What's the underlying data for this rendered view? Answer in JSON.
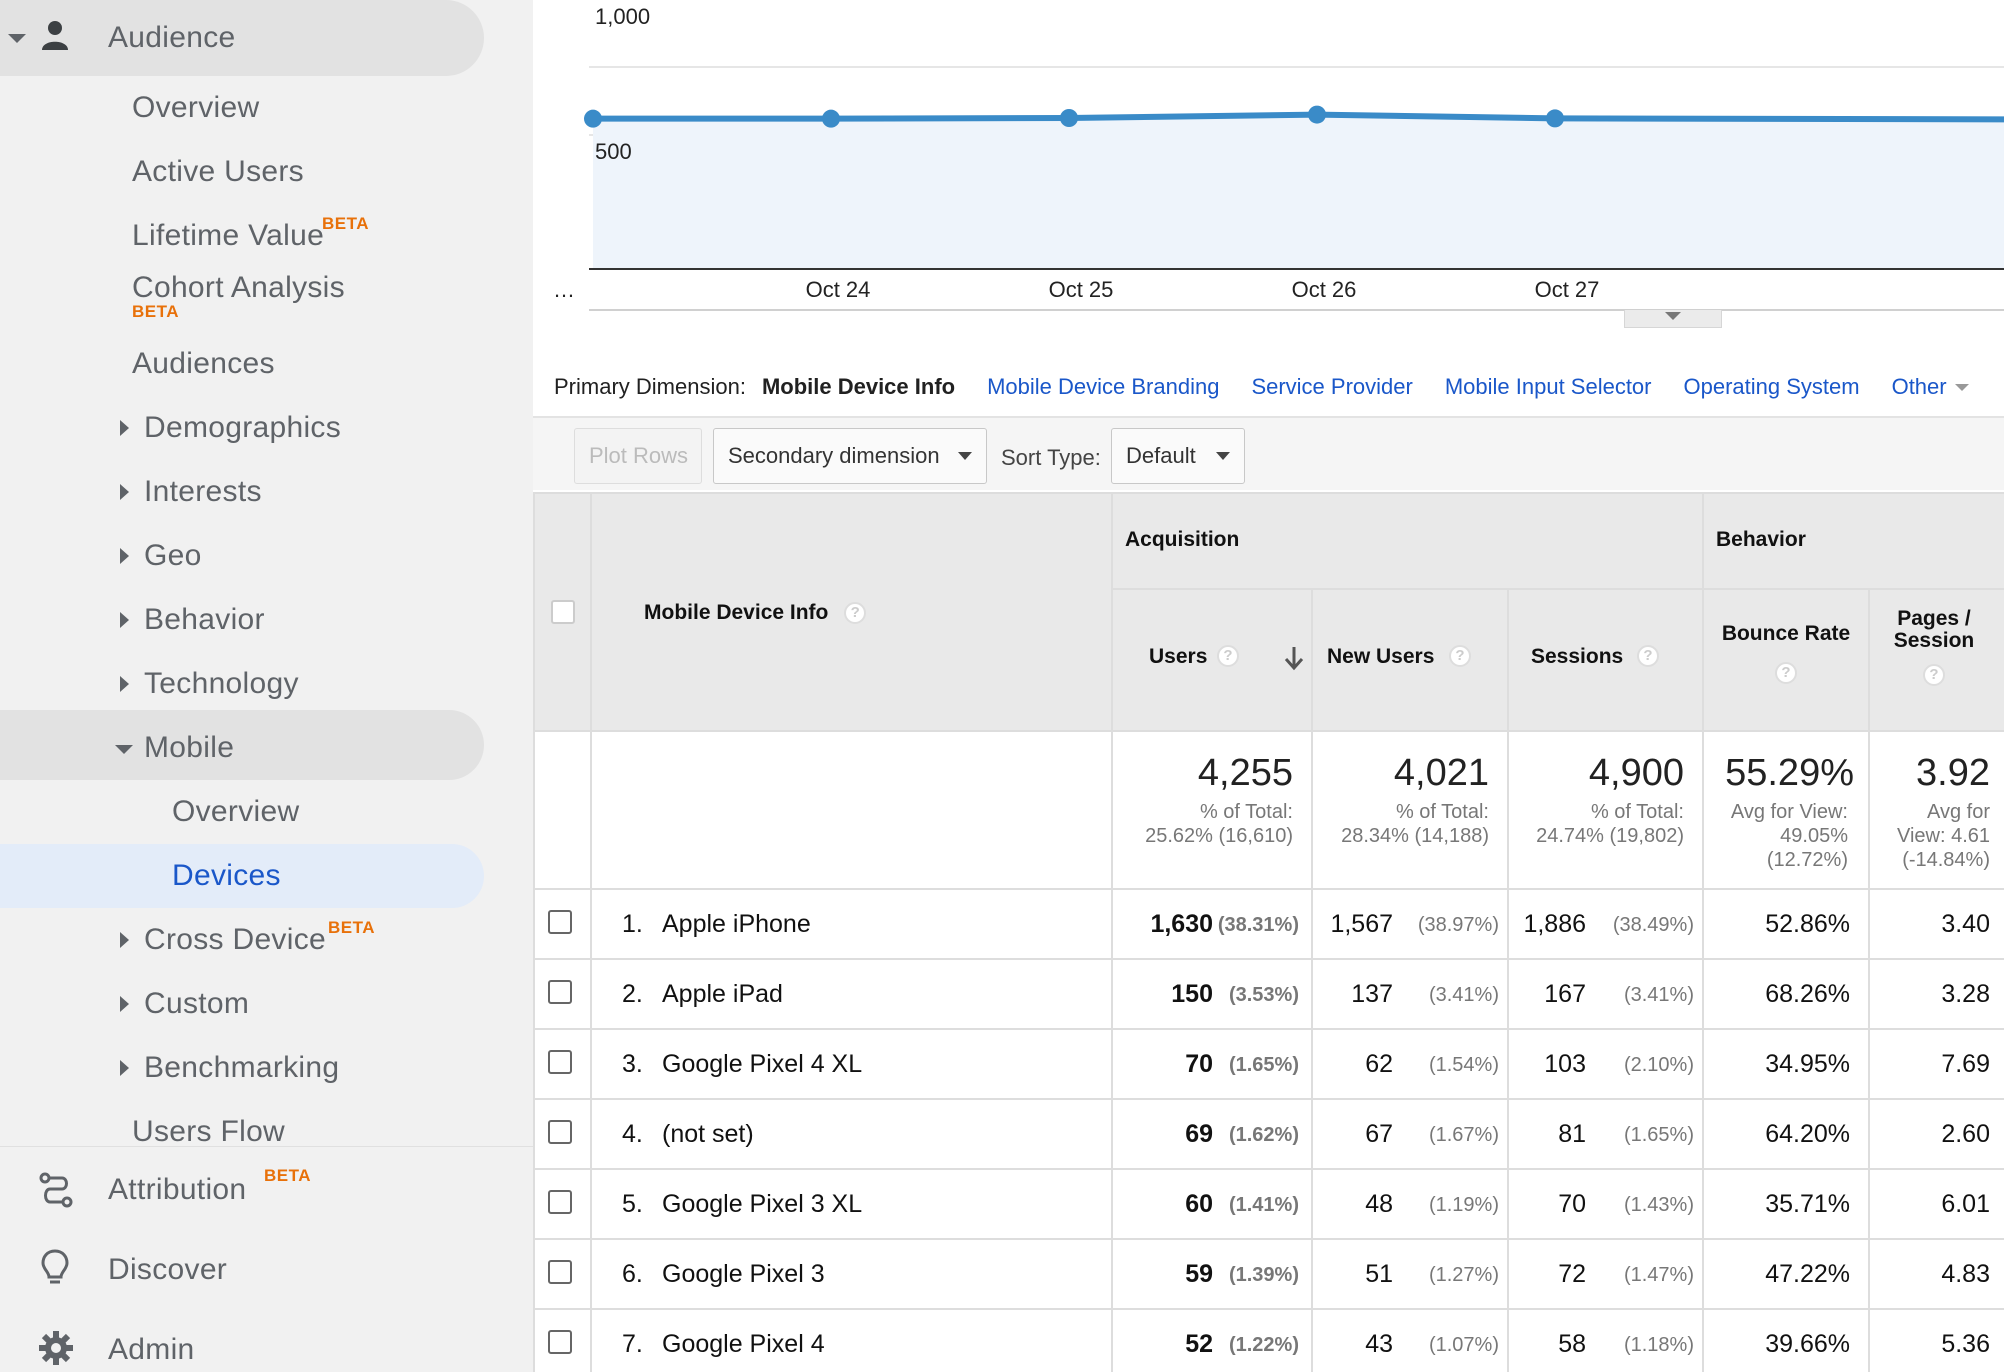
{
  "sidebar": {
    "audience": "Audience",
    "items": {
      "overview": "Overview",
      "active_users": "Active Users",
      "lifetime_value": "Lifetime Value",
      "cohort_analysis": "Cohort Analysis",
      "audiences": "Audiences",
      "demographics": "Demographics",
      "interests": "Interests",
      "geo": "Geo",
      "behavior": "Behavior",
      "technology": "Technology",
      "mobile": "Mobile",
      "mobile_overview": "Overview",
      "devices": "Devices",
      "cross_device": "Cross Device",
      "custom": "Custom",
      "benchmarking": "Benchmarking",
      "users_flow": "Users Flow"
    },
    "beta": "BETA",
    "attribution": "Attribution",
    "discover": "Discover",
    "admin": "Admin",
    "icons": {
      "audience": "person-icon",
      "attribution": "route-icon",
      "discover": "lightbulb-icon",
      "admin": "gear-icon"
    }
  },
  "chart_data": {
    "type": "area",
    "x": [
      "…",
      "Oct 24",
      "Oct 25",
      "Oct 26",
      "Oct 27",
      ""
    ],
    "series": [
      {
        "values": [
          620,
          620,
          625,
          650,
          622,
          615
        ]
      }
    ],
    "y_ticks": [
      "1,000",
      "500"
    ],
    "ylim": [
      0,
      1000
    ],
    "color": "#3a8bc8",
    "fill": "#eef4fb"
  },
  "primary_dimension": {
    "label": "Primary Dimension:",
    "current": "Mobile Device Info",
    "options": [
      "Mobile Device Branding",
      "Service Provider",
      "Mobile Input Selector",
      "Operating System",
      "Other"
    ]
  },
  "toolbar": {
    "plot_rows": "Plot Rows",
    "secondary_dimension": "Secondary dimension",
    "sort_type_label": "Sort Type:",
    "sort_type_value": "Default"
  },
  "table": {
    "dimension_header": "Mobile Device Info",
    "group_acquisition": "Acquisition",
    "group_behavior": "Behavior",
    "col_users": "Users",
    "col_new_users": "New Users",
    "col_sessions": "Sessions",
    "col_bounce_rate": "Bounce Rate",
    "col_pages_session": "Pages /\nSession",
    "help": "?",
    "summary": {
      "users": "4,255",
      "users_sub": "% of Total:\n25.62% (16,610)",
      "new_users": "4,021",
      "new_users_sub": "% of Total:\n28.34% (14,188)",
      "sessions": "4,900",
      "sessions_sub": "% of Total:\n24.74% (19,802)",
      "bounce_rate": "55.29%",
      "bounce_rate_sub": "Avg for View:\n49.05%\n(12.72%)",
      "pages": "3.92",
      "pages_sub": "Avg for\nView: 4.61\n(-14.84%)"
    },
    "rows": [
      {
        "num": "1.",
        "name": "Apple iPhone",
        "users": "1,630",
        "users_pct": "(38.31%)",
        "new_users": "1,567",
        "new_users_pct": "(38.97%)",
        "sessions": "1,886",
        "sessions_pct": "(38.49%)",
        "bounce": "52.86%",
        "pages": "3.40"
      },
      {
        "num": "2.",
        "name": "Apple iPad",
        "users": "150",
        "users_pct": "(3.53%)",
        "new_users": "137",
        "new_users_pct": "(3.41%)",
        "sessions": "167",
        "sessions_pct": "(3.41%)",
        "bounce": "68.26%",
        "pages": "3.28"
      },
      {
        "num": "3.",
        "name": "Google Pixel 4 XL",
        "users": "70",
        "users_pct": "(1.65%)",
        "new_users": "62",
        "new_users_pct": "(1.54%)",
        "sessions": "103",
        "sessions_pct": "(2.10%)",
        "bounce": "34.95%",
        "pages": "7.69"
      },
      {
        "num": "4.",
        "name": "(not set)",
        "users": "69",
        "users_pct": "(1.62%)",
        "new_users": "67",
        "new_users_pct": "(1.67%)",
        "sessions": "81",
        "sessions_pct": "(1.65%)",
        "bounce": "64.20%",
        "pages": "2.60"
      },
      {
        "num": "5.",
        "name": "Google Pixel 3 XL",
        "users": "60",
        "users_pct": "(1.41%)",
        "new_users": "48",
        "new_users_pct": "(1.19%)",
        "sessions": "70",
        "sessions_pct": "(1.43%)",
        "bounce": "35.71%",
        "pages": "6.01"
      },
      {
        "num": "6.",
        "name": "Google Pixel 3",
        "users": "59",
        "users_pct": "(1.39%)",
        "new_users": "51",
        "new_users_pct": "(1.27%)",
        "sessions": "72",
        "sessions_pct": "(1.47%)",
        "bounce": "47.22%",
        "pages": "4.83"
      },
      {
        "num": "7.",
        "name": "Google Pixel 4",
        "users": "52",
        "users_pct": "(1.22%)",
        "new_users": "43",
        "new_users_pct": "(1.07%)",
        "sessions": "58",
        "sessions_pct": "(1.18%)",
        "bounce": "39.66%",
        "pages": "5.36"
      }
    ]
  }
}
